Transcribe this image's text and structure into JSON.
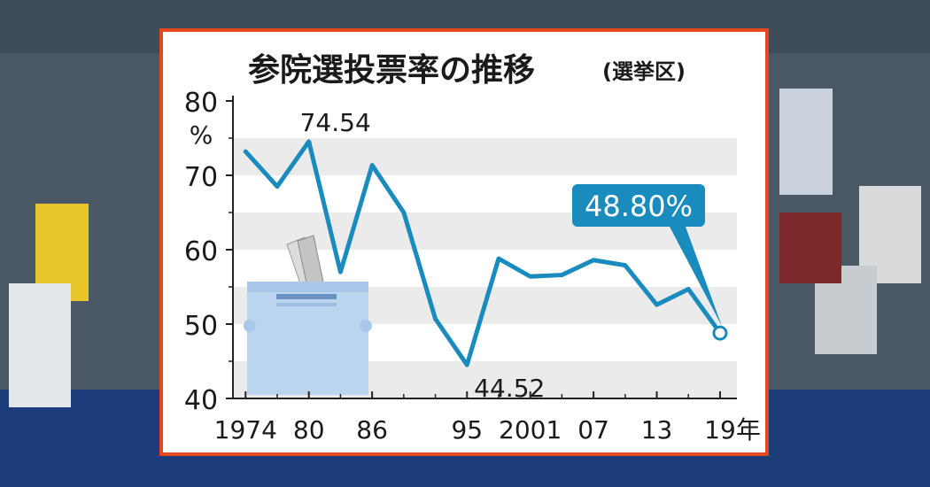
{
  "chart_data": {
    "type": "line",
    "title": "参院選投票率の推移",
    "subtitle": "(選挙区)",
    "ylabel_unit": "%",
    "x_suffix": "年",
    "ylim": [
      40,
      80
    ],
    "y_ticks": [
      "80",
      "70",
      "60",
      "50",
      "40"
    ],
    "x_ticks": [
      {
        "year": 1974,
        "label": "1974"
      },
      {
        "year": 1980,
        "label": "80"
      },
      {
        "year": 1986,
        "label": "86"
      },
      {
        "year": 1995,
        "label": "95"
      },
      {
        "year": 2001,
        "label": "2001"
      },
      {
        "year": 2007,
        "label": "07"
      },
      {
        "year": 2013,
        "label": "13"
      },
      {
        "year": 2019,
        "label": "19"
      }
    ],
    "grid_bands": true,
    "series": [
      {
        "color": "#1a8bbd",
        "x": [
          1974,
          1977,
          1980,
          1983,
          1986,
          1989,
          1992,
          1995,
          1998,
          2001,
          2004,
          2007,
          2010,
          2013,
          2016,
          2019
        ],
        "values": [
          73.2,
          68.5,
          74.54,
          57.0,
          71.36,
          65.0,
          50.7,
          44.52,
          58.8,
          56.4,
          56.6,
          58.6,
          57.9,
          52.6,
          54.7,
          48.8
        ]
      }
    ],
    "annotations": [
      {
        "text": "74.54",
        "year": 1980
      },
      {
        "text": "44.52",
        "year": 1995
      },
      {
        "text": "48.80%",
        "year": 2019,
        "highlight": true
      }
    ]
  }
}
